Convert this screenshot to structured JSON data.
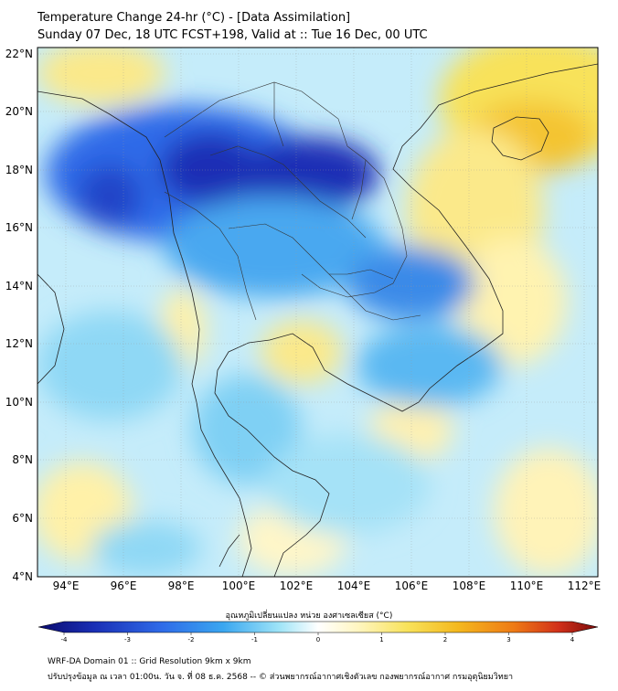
{
  "header": {
    "title": "Temperature Change 24-hr (°C) - [Data Assimilation]",
    "subtitle": "Sunday 07 Dec, 18 UTC FCST+198, Valid at :: Tue 16 Dec, 00 UTC"
  },
  "map": {
    "lat_labels": [
      "22°N",
      "20°N",
      "18°N",
      "16°N",
      "14°N",
      "12°N",
      "10°N",
      "8°N",
      "6°N",
      "4°N"
    ],
    "lon_labels": [
      "94°E",
      "96°E",
      "98°E",
      "100°E",
      "102°E",
      "104°E",
      "106°E",
      "108°E",
      "110°E",
      "112°E"
    ],
    "lat_range": [
      4,
      22.3
    ],
    "lon_range": [
      93,
      112.5
    ]
  },
  "colorbar": {
    "title": "อุณหภูมิเปลี่ยนแปลง หน่วย องศาเซลเซียส (°C)",
    "ticks": [
      "-4",
      "-3",
      "-2",
      "-1",
      "0",
      "1",
      "2",
      "3",
      "4"
    ],
    "range": [
      -4,
      4
    ],
    "colors": [
      "#0a0a6e",
      "#1a2fb5",
      "#2f6be8",
      "#3aa6f0",
      "#78d8f5",
      "#d8f4fb",
      "#ffffff",
      "#fff6c2",
      "#f8e25a",
      "#f4b81e",
      "#ee7a16",
      "#d1301a",
      "#7a0a0a"
    ]
  },
  "footer": {
    "line1": "WRF-DA Domain 01 :: Grid Resolution 9km x 9km",
    "line2": "ปรับปรุงข้อมูล ณ เวลา 01:00น. วัน จ. ที่ 08 ธ.ค. 2568 -- © ส่วนพยากรณ์อากาศเชิงตัวเลข กองพยากรณ์อากาศ กรมอุตุนิยมวิทยา"
  }
}
